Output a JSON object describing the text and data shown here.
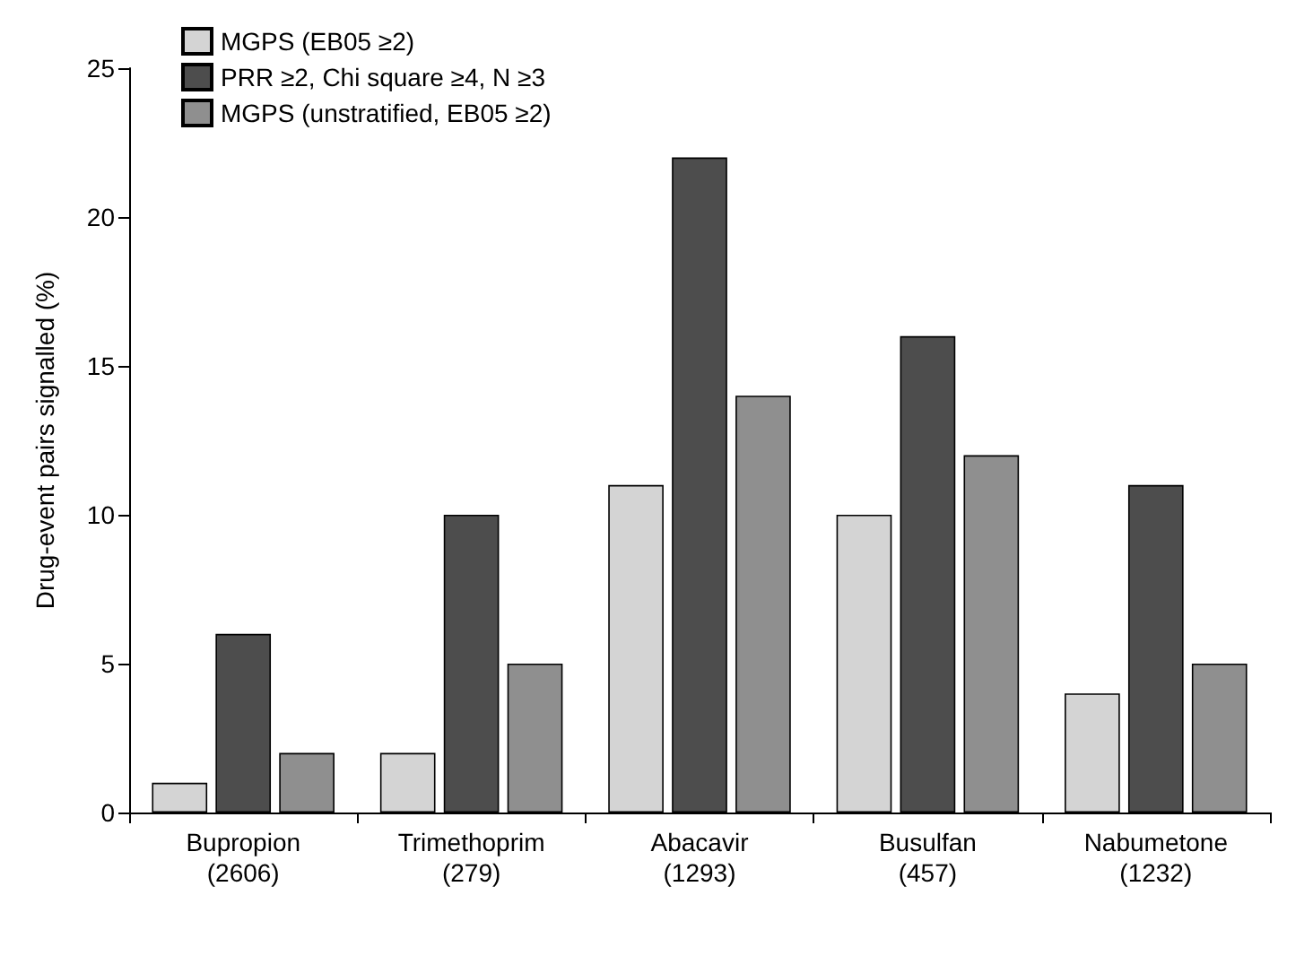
{
  "chart_data": {
    "type": "bar",
    "ylabel": "Drug-event pairs signalled (%)",
    "categories": [
      "Bupropion\n(2606)",
      "Trimethoprim\n(279)",
      "Abacavir\n(1293)",
      "Busulfan\n(457)",
      "Nabumetone\n(1232)"
    ],
    "series": [
      {
        "name": "MGPS (EB05 ≥2)",
        "color": "#d4d4d4",
        "values": [
          1,
          2,
          11,
          10,
          4
        ]
      },
      {
        "name": "PRR ≥2, Chi square ≥4, N ≥3",
        "color": "#4d4d4d",
        "values": [
          6,
          10,
          22,
          16,
          11
        ]
      },
      {
        "name": "MGPS (unstratified, EB05 ≥2)",
        "color": "#8f8f8f",
        "values": [
          2,
          5,
          14,
          12,
          5
        ]
      }
    ],
    "ylim": [
      0,
      25
    ],
    "yticks": [
      0,
      5,
      10,
      15,
      20,
      25
    ],
    "grid": false,
    "legend": "top left"
  }
}
